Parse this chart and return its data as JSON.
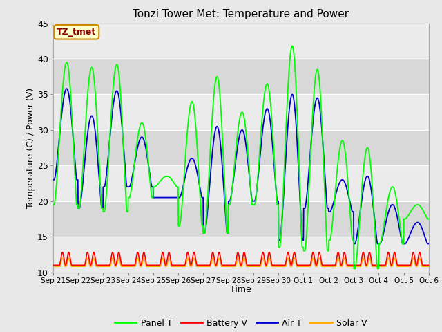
{
  "title": "Tonzi Tower Met: Temperature and Power",
  "xlabel": "Time",
  "ylabel": "Temperature (C) / Power (V)",
  "ylim": [
    10,
    45
  ],
  "n_days": 15,
  "xtick_labels": [
    "Sep 21",
    "Sep 22",
    "Sep 23",
    "Sep 24",
    "Sep 25",
    "Sep 26",
    "Sep 27",
    "Sep 28",
    "Sep 29",
    "Sep 30",
    "Oct 1",
    "Oct 2",
    "Oct 3",
    "Oct 4",
    "Oct 5",
    "Oct 6"
  ],
  "ytick_values": [
    10,
    15,
    20,
    25,
    30,
    35,
    40,
    45
  ],
  "bg_light": "#ebebeb",
  "bg_dark": "#d8d8d8",
  "grid_color": "#ffffff",
  "annotation_text": "TZ_tmet",
  "annotation_bg": "#ffffcc",
  "annotation_border": "#cc8800",
  "annotation_text_color": "#8b0000",
  "colors": {
    "Panel T": "#00ff00",
    "Battery V": "#ff0000",
    "Air T": "#0000cc",
    "Solar V": "#ffaa00"
  },
  "panel_peaks": [
    39.5,
    38.8,
    39.2,
    31.0,
    23.5,
    34.0,
    37.5,
    32.5,
    36.5,
    41.8,
    38.5,
    28.5,
    27.5,
    22.0,
    19.5
  ],
  "panel_mins": [
    19.5,
    19.0,
    18.5,
    20.5,
    22.0,
    16.5,
    15.5,
    19.5,
    19.5,
    13.5,
    13.0,
    14.5,
    10.5,
    14.0,
    17.5
  ],
  "panel_peak2": [
    null,
    null,
    null,
    null,
    null,
    null,
    null,
    null,
    null,
    null,
    null,
    null,
    null,
    null,
    null
  ],
  "air_peaks": [
    35.8,
    32.0,
    35.5,
    29.0,
    20.5,
    26.0,
    30.5,
    30.0,
    33.0,
    35.0,
    34.5,
    23.0,
    23.5,
    19.5,
    17.0
  ],
  "air_mins": [
    23.0,
    19.0,
    22.0,
    22.0,
    20.5,
    20.5,
    15.5,
    20.0,
    20.0,
    14.5,
    19.0,
    18.5,
    14.0,
    14.0,
    14.0
  ],
  "batt_base": 11.0,
  "solar_base": 10.8,
  "batt_spike": 1.8,
  "solar_spike": 1.2
}
